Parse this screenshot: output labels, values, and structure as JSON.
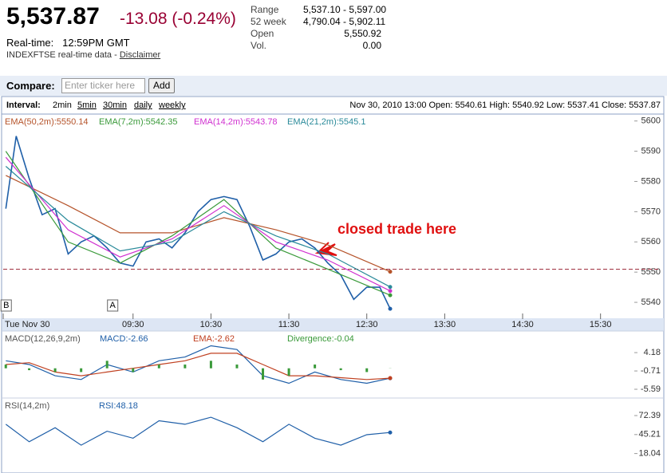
{
  "quote": {
    "price": "5,537.87",
    "change": "-13.08 (-0.24%)",
    "realtime_label": "Real-time:",
    "time": "12:59PM GMT",
    "source": "INDEXFTSE real-time data - ",
    "disclaimer": "Disclaimer"
  },
  "stats": [
    {
      "label": "Range",
      "value": "5,537.10 - 5,597.00"
    },
    {
      "label": "52 week",
      "value": "4,790.04 - 5,902.11"
    },
    {
      "label": "Open",
      "value": "5,550.92"
    },
    {
      "label": "Vol.",
      "value": "0.00"
    }
  ],
  "compare": {
    "label": "Compare:",
    "placeholder": "Enter ticker here",
    "button": "Add"
  },
  "toolbar": {
    "interval_label": "Interval:",
    "intervals": [
      "2min",
      "5min",
      "30min",
      "daily",
      "weekly"
    ],
    "summary": "Nov 30, 2010 13:00 Open: 5540.61 High: 5540.92 Low: 5537.41 Close: 5537.87"
  },
  "chart_data": [
    {
      "type": "line",
      "xlim": [
        470,
        956
      ],
      "ylim": [
        5535,
        5601.5
      ],
      "xticks": [
        {
          "value": 470,
          "label": "Tue Nov 30"
        },
        {
          "value": 570,
          "label": "09:30"
        },
        {
          "value": 630,
          "label": "10:30"
        },
        {
          "value": 690,
          "label": "11:30"
        },
        {
          "value": 750,
          "label": "12:30"
        },
        {
          "value": 810,
          "label": "13:30"
        },
        {
          "value": 870,
          "label": "14:30"
        },
        {
          "value": 930,
          "label": "15:30"
        }
      ],
      "yticks": [
        5540,
        5550,
        5560,
        5570,
        5580,
        5590,
        5600
      ],
      "reference_line": 5550.95,
      "annotation": "closed trade here",
      "markers": [
        {
          "label": "B",
          "x": 472
        },
        {
          "label": "A",
          "x": 554
        }
      ],
      "series": [
        {
          "color": "#1f5fa8",
          "x": [
            472,
            480,
            490,
            500,
            510,
            520,
            530,
            540,
            550,
            560,
            570,
            580,
            590,
            600,
            610,
            620,
            630,
            640,
            650,
            660,
            670,
            680,
            690,
            700,
            710,
            720,
            730,
            740,
            750,
            760,
            768
          ],
          "values": [
            5571,
            5595,
            5581,
            5569,
            5571,
            5556,
            5560,
            5562,
            5558,
            5553,
            5552,
            5560,
            5561,
            5558,
            5563,
            5570,
            5574,
            5575,
            5574,
            5565,
            5554,
            5556,
            5560,
            5561,
            5558,
            5553,
            5549,
            5541,
            5545,
            5545,
            5537.87
          ]
        },
        {
          "name": "EMA(50,2m):5550.14",
          "color": "#b5532a",
          "x": [
            472,
            520,
            560,
            600,
            640,
            680,
            720,
            768
          ],
          "values": [
            5582,
            5572,
            5563,
            5563,
            5568,
            5564,
            5559,
            5550.14
          ]
        },
        {
          "name": "EMA(7,2m):5542.35",
          "color": "#3a9a3a",
          "x": [
            472,
            520,
            560,
            600,
            640,
            680,
            720,
            768
          ],
          "values": [
            5590,
            5560,
            5553,
            5562,
            5574,
            5558,
            5551,
            5542.35
          ]
        },
        {
          "name": "EMA(14,2m):5543.78",
          "color": "#d030d0",
          "x": [
            472,
            520,
            560,
            600,
            640,
            680,
            720,
            768
          ],
          "values": [
            5588,
            5564,
            5555,
            5561,
            5572,
            5560,
            5554,
            5543.78
          ]
        },
        {
          "name": "EMA(21,2m):5545.1",
          "color": "#2a8a9a",
          "x": [
            472,
            520,
            560,
            600,
            640,
            680,
            720,
            768
          ],
          "values": [
            5585,
            5567,
            5557,
            5560,
            5570,
            5562,
            5556,
            5545.1
          ]
        }
      ]
    },
    {
      "type": "line",
      "title": "MACD(12,26,9,2m)",
      "xlim": [
        470,
        956
      ],
      "ylim": [
        -7.5,
        9.3
      ],
      "yticks": [
        -5.59,
        -0.71,
        4.18
      ],
      "series": [
        {
          "name": "MACD:-2.66",
          "color": "#1f5fa8",
          "x": [
            472,
            490,
            510,
            530,
            550,
            570,
            590,
            610,
            630,
            650,
            670,
            690,
            710,
            730,
            750,
            768
          ],
          "values": [
            2,
            1,
            -2,
            -3,
            1,
            -1,
            2,
            3,
            6,
            5,
            -2,
            -4,
            -1,
            -3,
            -4,
            -2.66
          ]
        },
        {
          "name": "EMA:-2.62",
          "color": "#c04020",
          "x": [
            472,
            490,
            510,
            530,
            550,
            570,
            590,
            610,
            630,
            650,
            670,
            690,
            710,
            730,
            750,
            768
          ],
          "values": [
            1,
            1.5,
            -1,
            -2,
            -1,
            0,
            1,
            2,
            4,
            4,
            1,
            -2,
            -2,
            -2.5,
            -3,
            -2.62
          ]
        },
        {
          "name": "Divergence:-0.04",
          "type": "bar",
          "color": "#3a9a3a",
          "x": [
            472,
            490,
            510,
            530,
            550,
            570,
            590,
            610,
            630,
            650,
            670,
            690,
            710,
            730,
            750,
            768
          ],
          "values": [
            1,
            -0.5,
            -1,
            -1,
            2,
            -1,
            1,
            1,
            2,
            1,
            -3,
            -2,
            1,
            -0.5,
            -1,
            -0.04
          ]
        }
      ]
    },
    {
      "type": "line",
      "title": "RSI(14,2m)",
      "xlim": [
        470,
        956
      ],
      "ylim": [
        9.6,
        94.1
      ],
      "yticks": [
        18.04,
        45.21,
        72.39
      ],
      "series": [
        {
          "name": "RSI:48.18",
          "color": "#1f5fa8",
          "x": [
            472,
            490,
            510,
            530,
            550,
            570,
            590,
            610,
            630,
            650,
            670,
            690,
            710,
            730,
            750,
            768
          ],
          "values": [
            60,
            35,
            55,
            30,
            50,
            40,
            65,
            60,
            70,
            55,
            35,
            60,
            40,
            30,
            45,
            48.18
          ]
        }
      ]
    }
  ]
}
